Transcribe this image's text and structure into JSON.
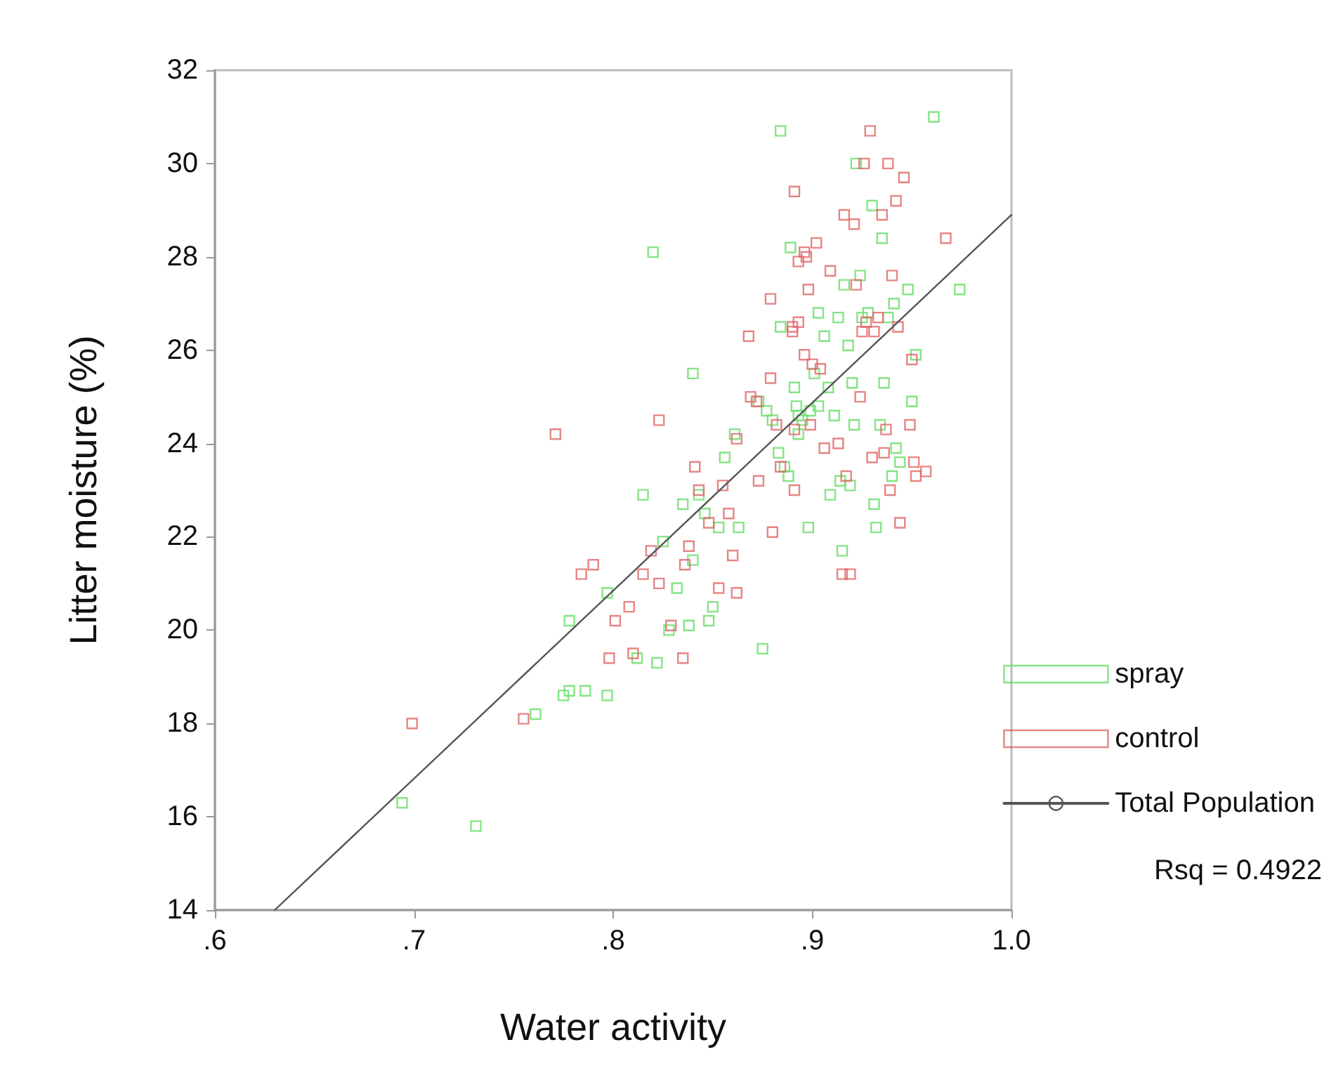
{
  "chart_data": {
    "type": "scatter",
    "xlabel": "Water activity",
    "ylabel": "Litter moisture (%)",
    "xlim": [
      0.6,
      1.0
    ],
    "xticks": [
      {
        "value": 0.6,
        "label": ".6"
      },
      {
        "value": 0.7,
        "label": ".7"
      },
      {
        "value": 0.8,
        "label": ".8"
      },
      {
        "value": 0.9,
        "label": ".9"
      },
      {
        "value": 1.0,
        "label": "1.0"
      }
    ],
    "ylim": [
      14,
      32
    ],
    "yticks": [
      14,
      16,
      18,
      20,
      22,
      24,
      26,
      28,
      30,
      32
    ],
    "grid": false,
    "legend": "right",
    "marker": "square",
    "annotations": [
      "Rsq = 0.4922"
    ],
    "series": [
      {
        "name": "spray",
        "color": "#66dd66",
        "x": [
          0.694,
          0.731,
          0.761,
          0.775,
          0.778,
          0.786,
          0.797,
          0.778,
          0.797,
          0.812,
          0.822,
          0.815,
          0.82,
          0.825,
          0.828,
          0.832,
          0.838,
          0.84,
          0.835,
          0.84,
          0.843,
          0.846,
          0.848,
          0.85,
          0.853,
          0.856,
          0.861,
          0.863,
          0.875,
          0.873,
          0.877,
          0.88,
          0.884,
          0.884,
          0.883,
          0.886,
          0.888,
          0.889,
          0.891,
          0.892,
          0.893,
          0.895,
          0.898,
          0.899,
          0.901,
          0.903,
          0.906,
          0.908,
          0.909,
          0.911,
          0.913,
          0.914,
          0.915,
          0.916,
          0.918,
          0.919,
          0.92,
          0.921,
          0.922,
          0.924,
          0.925,
          0.928,
          0.93,
          0.931,
          0.932,
          0.934,
          0.935,
          0.936,
          0.938,
          0.94,
          0.941,
          0.942,
          0.944,
          0.948,
          0.95,
          0.952,
          0.961,
          0.974,
          0.893,
          0.903
        ],
        "values": [
          16.3,
          15.8,
          18.2,
          18.6,
          18.7,
          18.7,
          18.6,
          20.2,
          20.8,
          19.4,
          19.3,
          22.9,
          28.1,
          21.9,
          20.0,
          20.9,
          20.1,
          21.5,
          22.7,
          25.5,
          22.9,
          22.5,
          20.2,
          20.5,
          22.2,
          23.7,
          24.2,
          22.2,
          19.6,
          24.9,
          24.7,
          24.5,
          30.7,
          26.5,
          23.8,
          23.5,
          23.3,
          28.2,
          25.2,
          24.8,
          24.6,
          24.5,
          22.2,
          24.7,
          25.5,
          26.8,
          26.3,
          25.2,
          22.9,
          24.6,
          26.7,
          23.2,
          21.7,
          27.4,
          26.1,
          23.1,
          25.3,
          24.4,
          30.0,
          27.6,
          26.7,
          26.8,
          29.1,
          22.7,
          22.2,
          24.4,
          28.4,
          25.3,
          26.7,
          23.3,
          27.0,
          23.9,
          23.6,
          27.3,
          24.9,
          25.9,
          31.0,
          27.3,
          24.2,
          24.8
        ]
      },
      {
        "name": "control",
        "color": "#e06666",
        "x": [
          0.699,
          0.755,
          0.771,
          0.784,
          0.79,
          0.798,
          0.801,
          0.808,
          0.81,
          0.815,
          0.819,
          0.823,
          0.823,
          0.829,
          0.835,
          0.836,
          0.838,
          0.841,
          0.843,
          0.848,
          0.853,
          0.855,
          0.858,
          0.86,
          0.862,
          0.862,
          0.868,
          0.869,
          0.872,
          0.873,
          0.879,
          0.879,
          0.88,
          0.882,
          0.884,
          0.89,
          0.89,
          0.891,
          0.891,
          0.891,
          0.893,
          0.893,
          0.896,
          0.896,
          0.897,
          0.898,
          0.899,
          0.9,
          0.902,
          0.904,
          0.906,
          0.909,
          0.913,
          0.915,
          0.916,
          0.917,
          0.919,
          0.921,
          0.922,
          0.924,
          0.925,
          0.926,
          0.927,
          0.929,
          0.93,
          0.931,
          0.933,
          0.935,
          0.936,
          0.937,
          0.938,
          0.939,
          0.94,
          0.942,
          0.943,
          0.944,
          0.946,
          0.949,
          0.95,
          0.951,
          0.952,
          0.957,
          0.967
        ],
        "values": [
          18.0,
          18.1,
          24.2,
          21.2,
          21.4,
          19.4,
          20.2,
          20.5,
          19.5,
          21.2,
          21.7,
          24.5,
          21.0,
          20.1,
          19.4,
          21.4,
          21.8,
          23.5,
          23.0,
          22.3,
          20.9,
          23.1,
          22.5,
          21.6,
          20.8,
          24.1,
          26.3,
          25.0,
          24.9,
          23.2,
          27.1,
          25.4,
          22.1,
          24.4,
          23.5,
          26.5,
          26.4,
          24.3,
          23.0,
          29.4,
          26.6,
          27.9,
          28.1,
          25.9,
          28.0,
          27.3,
          24.4,
          25.7,
          28.3,
          25.6,
          23.9,
          27.7,
          24.0,
          21.2,
          28.9,
          23.3,
          21.2,
          28.7,
          27.4,
          25.0,
          26.4,
          30.0,
          26.6,
          30.7,
          23.7,
          26.4,
          26.7,
          28.9,
          23.8,
          24.3,
          30.0,
          23.0,
          27.6,
          29.2,
          26.5,
          22.3,
          29.7,
          24.4,
          25.8,
          23.6,
          23.3,
          23.4,
          28.4
        ]
      },
      {
        "name": "Total Population",
        "type": "line",
        "color": "#555555",
        "marker": "none",
        "x": [
          0.63,
          1.0
        ],
        "values": [
          14.0,
          28.9
        ]
      }
    ]
  }
}
